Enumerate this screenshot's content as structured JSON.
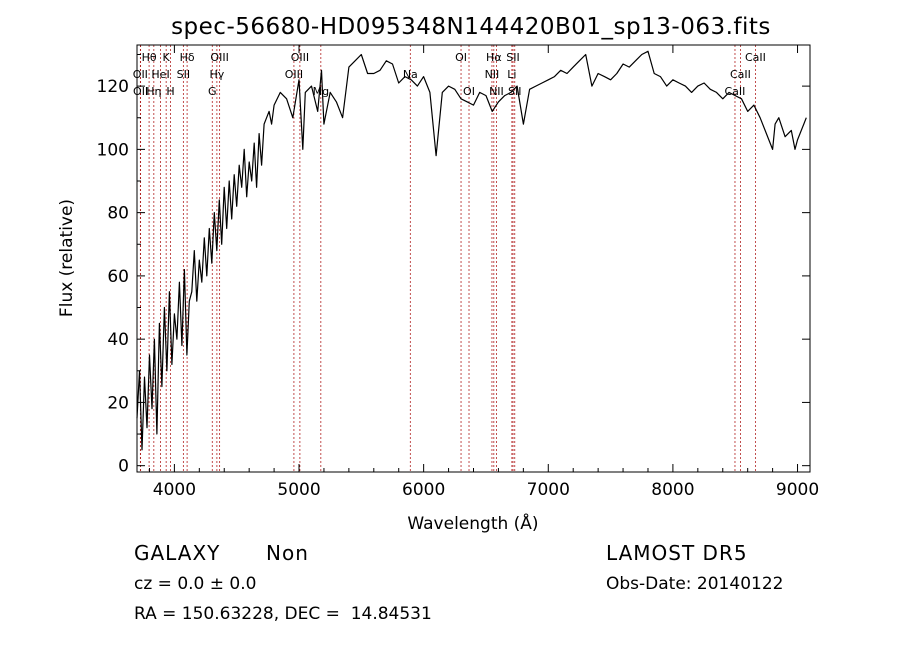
{
  "chart_data": {
    "type": "line",
    "title": "spec-56680-HD095348N144420B01_sp13-063.fits",
    "xlabel": "Wavelength (Å)",
    "ylabel": "Flux (relative)",
    "xlim": [
      3700,
      9100
    ],
    "ylim": [
      -2,
      133
    ],
    "xticks": [
      4000,
      5000,
      6000,
      7000,
      8000,
      9000
    ],
    "yticks": [
      0,
      20,
      40,
      60,
      80,
      100,
      120
    ],
    "line_color": "#000000",
    "marker_color": "#b22222",
    "series": [
      {
        "x": [
          3700,
          3720,
          3740,
          3760,
          3780,
          3800,
          3820,
          3840,
          3860,
          3880,
          3900,
          3920,
          3940,
          3960,
          3980,
          4000,
          4020,
          4040,
          4060,
          4080,
          4100,
          4120,
          4140,
          4160,
          4180,
          4200,
          4220,
          4240,
          4260,
          4280,
          4300,
          4320,
          4340,
          4360,
          4380,
          4400,
          4420,
          4440,
          4460,
          4480,
          4500,
          4520,
          4540,
          4560,
          4580,
          4600,
          4620,
          4640,
          4660,
          4680,
          4700,
          4720,
          4740,
          4760,
          4780,
          4800,
          4850,
          4900,
          4950,
          5000,
          5030,
          5050,
          5100,
          5150,
          5180,
          5200,
          5250,
          5300,
          5350,
          5400,
          5450,
          5500,
          5550,
          5600,
          5650,
          5700,
          5750,
          5800,
          5850,
          5900,
          5950,
          6000,
          6050,
          6100,
          6150,
          6200,
          6250,
          6300,
          6350,
          6400,
          6450,
          6500,
          6550,
          6600,
          6650,
          6700,
          6750,
          6800,
          6850,
          6900,
          6950,
          7000,
          7050,
          7100,
          7150,
          7200,
          7250,
          7300,
          7350,
          7400,
          7450,
          7500,
          7550,
          7600,
          7650,
          7700,
          7750,
          7800,
          7850,
          7900,
          7950,
          8000,
          8050,
          8100,
          8150,
          8200,
          8250,
          8300,
          8350,
          8400,
          8450,
          8500,
          8550,
          8600,
          8650,
          8700,
          8750,
          8800,
          8820,
          8850,
          8900,
          8950,
          8980,
          9000,
          9020,
          9050,
          9070
        ],
        "y": [
          15,
          30,
          5,
          28,
          12,
          35,
          18,
          40,
          10,
          45,
          25,
          50,
          30,
          55,
          32,
          48,
          40,
          58,
          38,
          62,
          35,
          52,
          55,
          68,
          52,
          65,
          58,
          72,
          60,
          75,
          64,
          80,
          68,
          84,
          70,
          88,
          75,
          90,
          78,
          92,
          82,
          95,
          88,
          100,
          85,
          96,
          90,
          102,
          88,
          105,
          95,
          108,
          110,
          112,
          108,
          114,
          118,
          116,
          110,
          122,
          100,
          118,
          120,
          112,
          125,
          108,
          118,
          115,
          110,
          126,
          128,
          130,
          124,
          124,
          125,
          128,
          127,
          121,
          123,
          122,
          120,
          123,
          118,
          98,
          118,
          120,
          119,
          116,
          115,
          114,
          118,
          117,
          112,
          115,
          117,
          118,
          120,
          108,
          119,
          120,
          121,
          122,
          123,
          125,
          124,
          126,
          128,
          130,
          120,
          124,
          123,
          122,
          124,
          127,
          126,
          128,
          130,
          131,
          124,
          123,
          120,
          122,
          121,
          120,
          118,
          120,
          121,
          119,
          118,
          116,
          118,
          117,
          116,
          112,
          114,
          110,
          105,
          100,
          108,
          110,
          104,
          106,
          100,
          103,
          105,
          108,
          110
        ]
      }
    ],
    "lines": [
      {
        "name": "OII",
        "x": 3727,
        "row": 2
      },
      {
        "name": "OII",
        "x": 3729,
        "row": 3
      },
      {
        "name": "Hθ",
        "x": 3797,
        "row": 1
      },
      {
        "name": "Hη",
        "x": 3835,
        "row": 3
      },
      {
        "name": "HeI",
        "x": 3889,
        "row": 2
      },
      {
        "name": "K",
        "x": 3934,
        "row": 1
      },
      {
        "name": "H",
        "x": 3969,
        "row": 3
      },
      {
        "name": "Hδ",
        "x": 4102,
        "row": 1
      },
      {
        "name": "SII",
        "x": 4072,
        "row": 2
      },
      {
        "name": "OIII",
        "x": 4363,
        "row": 1
      },
      {
        "name": "Hγ",
        "x": 4341,
        "row": 2
      },
      {
        "name": "G",
        "x": 4304,
        "row": 3
      },
      {
        "name": "OIII",
        "x": 5007,
        "row": 1
      },
      {
        "name": "OIII",
        "x": 4959,
        "row": 2
      },
      {
        "name": "Mg",
        "x": 5175,
        "row": 3
      },
      {
        "name": "Na",
        "x": 5893,
        "row": 2
      },
      {
        "name": "OI",
        "x": 6300,
        "row": 1
      },
      {
        "name": "OI",
        "x": 6364,
        "row": 3
      },
      {
        "name": "Hα",
        "x": 6563,
        "row": 1
      },
      {
        "name": "SII",
        "x": 6717,
        "row": 1
      },
      {
        "name": "NII",
        "x": 6548,
        "row": 2
      },
      {
        "name": "Li",
        "x": 6708,
        "row": 2
      },
      {
        "name": "NII",
        "x": 6584,
        "row": 3
      },
      {
        "name": "SII",
        "x": 6731,
        "row": 3
      },
      {
        "name": "CaII",
        "x": 8662,
        "row": 1
      },
      {
        "name": "CaII",
        "x": 8542,
        "row": 2
      },
      {
        "name": "CaII",
        "x": 8498,
        "row": 3
      }
    ]
  },
  "info": {
    "class": "GALAXY",
    "subclass": "Non",
    "survey": "LAMOST DR5",
    "cz": "cz = 0.0 ± 0.0",
    "obs_date": "Obs-Date: 20140122",
    "coords": "RA = 150.63228, DEC =  14.84531"
  }
}
